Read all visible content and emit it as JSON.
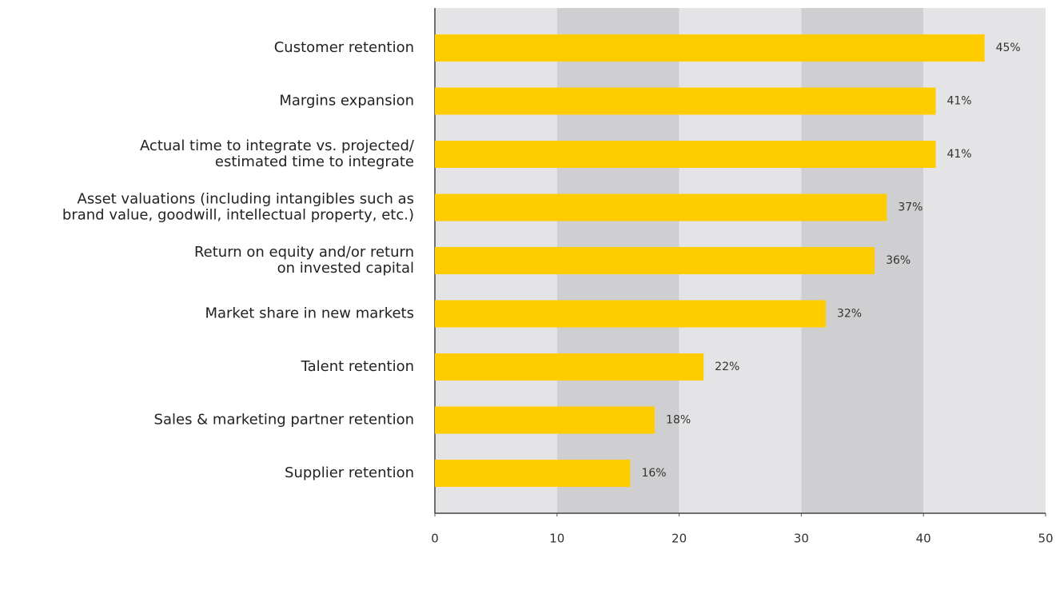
{
  "chart_data": {
    "type": "bar",
    "orientation": "horizontal",
    "categories": [
      "Customer retention",
      "Margins expansion",
      "Actual time to integrate vs. projected/\nestimated time to integrate",
      "Asset valuations (including intangibles such as\nbrand value, goodwill, intellectual property, etc.)",
      "Return on equity and/or return\non invested capital",
      "Market share in new markets",
      "Talent retention",
      "Sales & marketing partner retention",
      "Supplier retention"
    ],
    "values": [
      45,
      41,
      41,
      37,
      36,
      32,
      22,
      18,
      16
    ],
    "value_labels": [
      "45%",
      "41%",
      "41%",
      "37%",
      "36%",
      "32%",
      "22%",
      "18%",
      "16%"
    ],
    "color": "#ffcc00",
    "xlim": [
      0,
      50
    ],
    "xticks": [
      0,
      10,
      20,
      30,
      40,
      50
    ]
  }
}
